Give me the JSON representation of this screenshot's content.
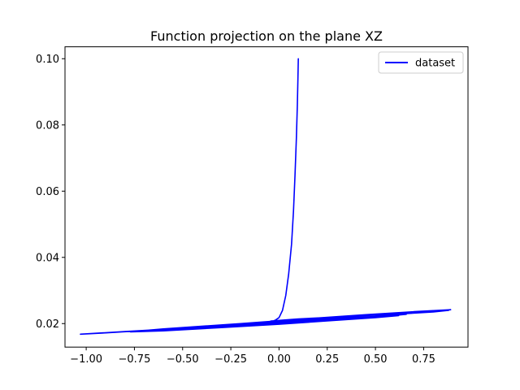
{
  "chart_data": {
    "type": "line",
    "title": "Function projection on the plane XZ",
    "xlabel": "",
    "ylabel": "",
    "xlim": [
      -1.11,
      0.98
    ],
    "ylim": [
      0.0129,
      0.1036
    ],
    "xticks": [
      -1.0,
      -0.75,
      -0.5,
      -0.25,
      0.0,
      0.25,
      0.5,
      0.75
    ],
    "xtick_labels": [
      "−1.00",
      "−0.75",
      "−0.50",
      "−0.25",
      "0.00",
      "0.25",
      "0.50",
      "0.75"
    ],
    "yticks": [
      0.02,
      0.04,
      0.06,
      0.08,
      0.1
    ],
    "ytick_labels": [
      "0.02",
      "0.04",
      "0.06",
      "0.08",
      "0.10"
    ],
    "grid": false,
    "legend_position": "upper right",
    "series": [
      {
        "name": "dataset",
        "color": "#0000ff",
        "x": [
          0.1,
          0.098,
          0.095,
          0.09,
          0.083,
          0.075,
          0.065,
          0.05,
          0.035,
          0.018,
          0.0,
          -0.02,
          -0.04,
          -0.06,
          -0.04,
          0.1,
          0.3,
          0.5,
          0.65,
          0.8,
          0.88,
          0.8,
          0.55,
          0.25,
          0.0,
          -0.3,
          -0.6,
          -0.76,
          -0.6,
          -0.3,
          0.0,
          0.3,
          0.55,
          0.66,
          0.55,
          0.3,
          0.0,
          -0.3,
          -0.6,
          -0.77,
          -0.6,
          -0.3,
          0.0,
          0.25,
          0.5,
          0.62,
          0.45,
          0.2,
          -0.1,
          -0.4,
          -0.7,
          -0.9,
          -1.03,
          -0.8,
          -0.5,
          -0.2,
          0.1,
          0.4,
          0.65,
          0.85,
          0.89,
          0.7,
          0.45,
          0.15,
          -0.15,
          -0.45,
          -0.76
        ],
        "y": [
          0.1,
          0.094,
          0.086,
          0.076,
          0.065,
          0.054,
          0.044,
          0.035,
          0.0285,
          0.024,
          0.0218,
          0.021,
          0.0206,
          0.0204,
          0.0208,
          0.0214,
          0.022,
          0.0226,
          0.023,
          0.0235,
          0.024,
          0.0236,
          0.0228,
          0.0218,
          0.0208,
          0.0196,
          0.0184,
          0.0176,
          0.018,
          0.019,
          0.02,
          0.0212,
          0.0222,
          0.0228,
          0.0224,
          0.0214,
          0.0202,
          0.019,
          0.018,
          0.0175,
          0.0178,
          0.0188,
          0.0198,
          0.0208,
          0.0218,
          0.0224,
          0.0219,
          0.0211,
          0.0201,
          0.019,
          0.0179,
          0.0172,
          0.0168,
          0.0176,
          0.0186,
          0.0198,
          0.021,
          0.0222,
          0.0232,
          0.024,
          0.0242,
          0.0236,
          0.0227,
          0.0215,
          0.0202,
          0.0189,
          0.0175
        ]
      }
    ]
  }
}
